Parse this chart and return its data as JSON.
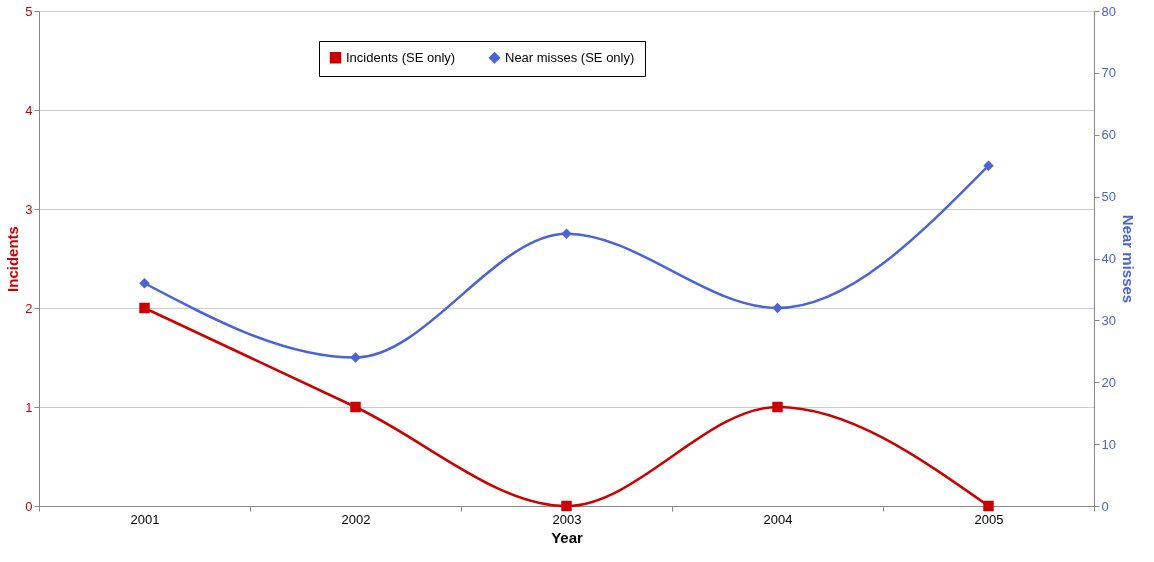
{
  "chart_data": {
    "type": "line",
    "xlabel": "Year",
    "ylabel": "Incidents",
    "y2label": "Near misses",
    "categories": [
      "2001",
      "2002",
      "2003",
      "2004",
      "2005"
    ],
    "series": [
      {
        "name": "Incidents (SE only)",
        "color": "#cc0000",
        "marker": "square",
        "values": [
          2,
          1,
          0,
          1,
          0
        ]
      },
      {
        "name": "Near misses (SE only)",
        "color": "#4a63d6",
        "marker": "diamond",
        "axis": "y2",
        "values": [
          36,
          24,
          44,
          32,
          55
        ]
      }
    ],
    "ylim": [
      0,
      5
    ],
    "yticks": [
      0,
      1,
      2,
      3,
      4,
      5
    ],
    "y2lim": [
      0,
      80
    ],
    "y2ticks": [
      0,
      10,
      20,
      30,
      40,
      50,
      60,
      70,
      80
    ],
    "grid": "y",
    "legend": "top",
    "line_style": "solid"
  }
}
